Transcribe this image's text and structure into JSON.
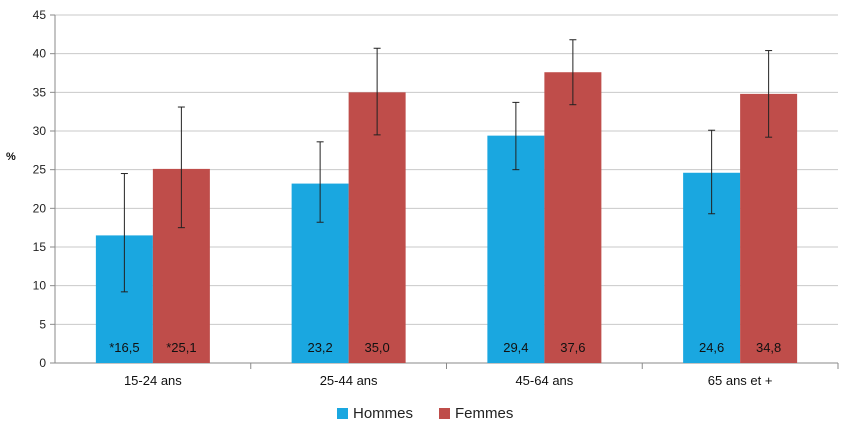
{
  "chart_data": {
    "type": "bar",
    "ylabel": "%",
    "categories": [
      "15-24 ans",
      "25-44 ans",
      "45-64 ans",
      "65 ans et +"
    ],
    "series": [
      {
        "name": "Hommes",
        "color": "#1aa7e0",
        "values": [
          16.5,
          23.2,
          29.4,
          24.6
        ],
        "labels": [
          "*16,5",
          "23,2",
          "29,4",
          "24,6"
        ],
        "error_low": [
          9.2,
          18.2,
          25.0,
          19.3
        ],
        "error_high": [
          24.5,
          28.6,
          33.7,
          30.1
        ]
      },
      {
        "name": "Femmes",
        "color": "#bf4d4a",
        "values": [
          25.1,
          35.0,
          37.6,
          34.8
        ],
        "labels": [
          "*25,1",
          "35,0",
          "37,6",
          "34,8"
        ],
        "error_low": [
          17.5,
          29.5,
          33.4,
          29.2
        ],
        "error_high": [
          33.1,
          40.7,
          41.8,
          40.4
        ]
      }
    ],
    "ylim": [
      0,
      45
    ],
    "yticks": [
      "0",
      "5",
      "10",
      "15",
      "20",
      "25",
      "30",
      "35",
      "40",
      "45"
    ],
    "grid": true,
    "legend_position": "bottom"
  }
}
